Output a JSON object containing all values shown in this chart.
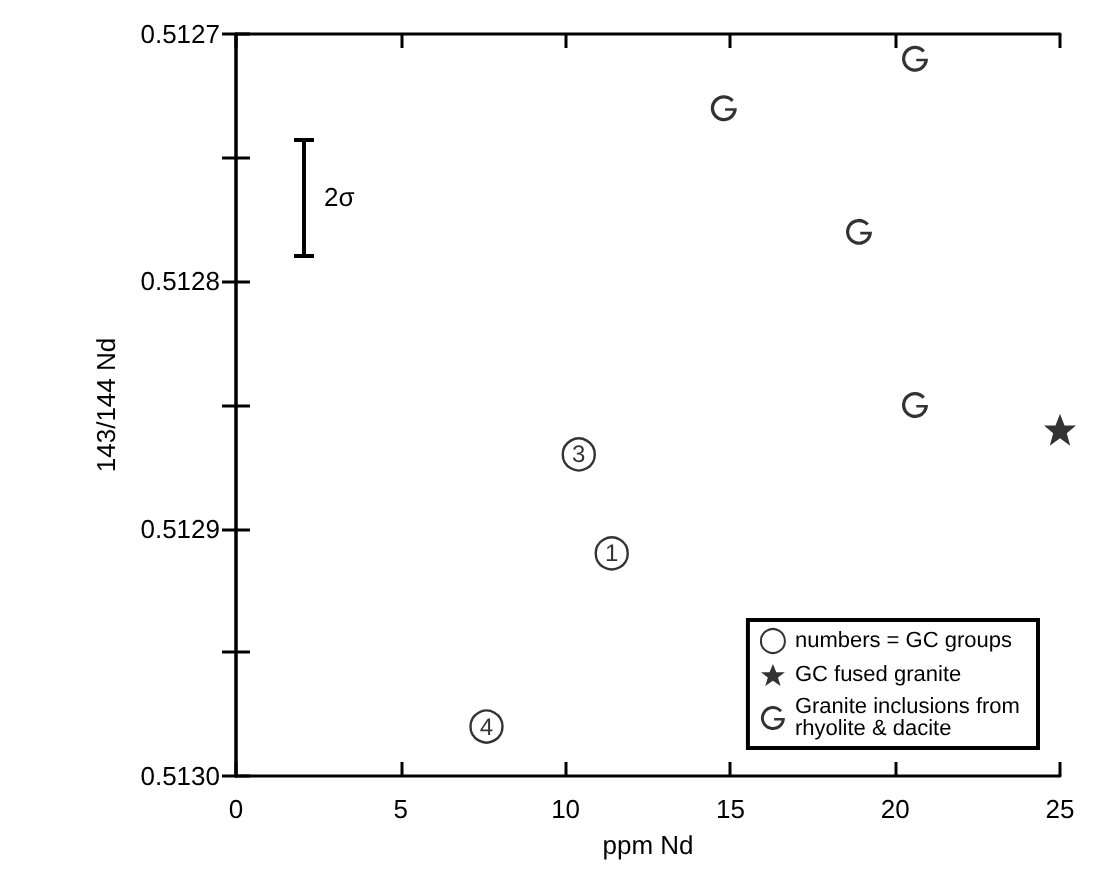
{
  "chart_data": {
    "type": "scatter",
    "xlabel": "ppm Nd",
    "ylabel": "143/144 Nd",
    "xlim": [
      0,
      25
    ],
    "xticks": [
      0,
      5,
      10,
      15,
      20,
      25
    ],
    "ylim": [
      0.513,
      0.5127
    ],
    "yticks": [
      0.5127,
      {
        "value": 0.51275,
        "label": null
      },
      0.5128,
      {
        "value": 0.51285,
        "label": null
      },
      0.5129,
      {
        "value": 0.51295,
        "label": null
      },
      {
        "value": 0.513,
        "label": "0.5130"
      }
    ],
    "grid": false,
    "legend": "bottom right",
    "series": [
      {
        "name": "numbers = GC groups",
        "color": "#000000",
        "marker": "circle",
        "x": [
          10.4,
          11.4,
          7.6
        ],
        "values": [
          0.51287,
          0.51291,
          0.51298
        ]
      },
      {
        "name": "GC fused granite",
        "color": "#000000",
        "marker": "star",
        "x": [
          25
        ],
        "values": [
          0.51286
        ]
      },
      {
        "name": "Granite inclusions from rhyolite & dacite",
        "color": "#000000",
        "x": [
          14.8,
          20.6,
          18.9,
          20.6
        ],
        "values": [
          0.51273,
          0.51271,
          0.51278,
          0.51285
        ]
      }
    ],
    "annotations": [
      "2σ",
      {
        "text": "3",
        "x": 10.4,
        "y": 0.51287
      },
      {
        "text": "1",
        "x": 11.4,
        "y": 0.51291
      },
      {
        "text": "4",
        "x": 7.6,
        "y": 0.51298
      }
    ]
  }
}
